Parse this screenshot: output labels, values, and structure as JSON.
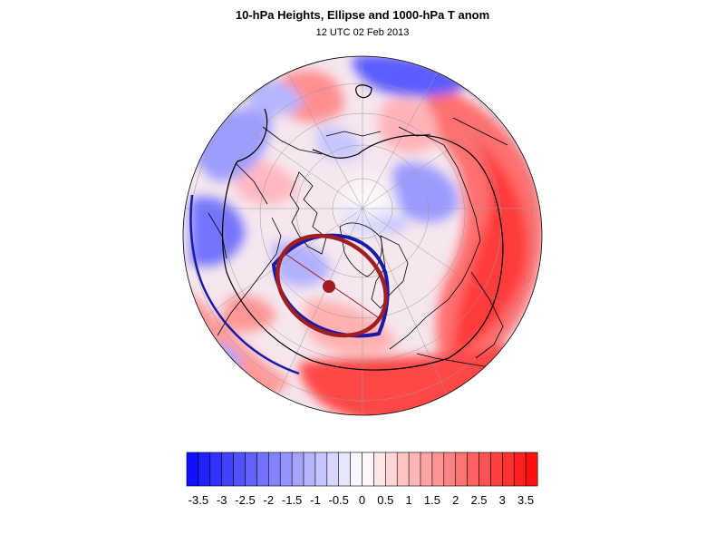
{
  "header": {
    "title": "10-hPa Heights, Ellipse and 1000-hPa T anom",
    "subtitle": "12 UTC 02 Feb 2013"
  },
  "colors": {
    "ellipse_fit": "#a01e22",
    "height_contour": "#1a1aa8",
    "vortex_center": "#a01e22",
    "coastline": "#000000",
    "colorbar_cold_end": "#1010ff",
    "colorbar_warm_end": "#ff1010"
  },
  "colorbar": {
    "tick_labels": [
      "-3.5",
      "-3",
      "-2.5",
      "-2",
      "-1.5",
      "-1",
      "-0.5",
      "0",
      "0.5",
      "1",
      "1.5",
      "2",
      "2.5",
      "3",
      "3.5"
    ],
    "range": [
      -3.75,
      3.75
    ],
    "step": 0.25
  }
}
